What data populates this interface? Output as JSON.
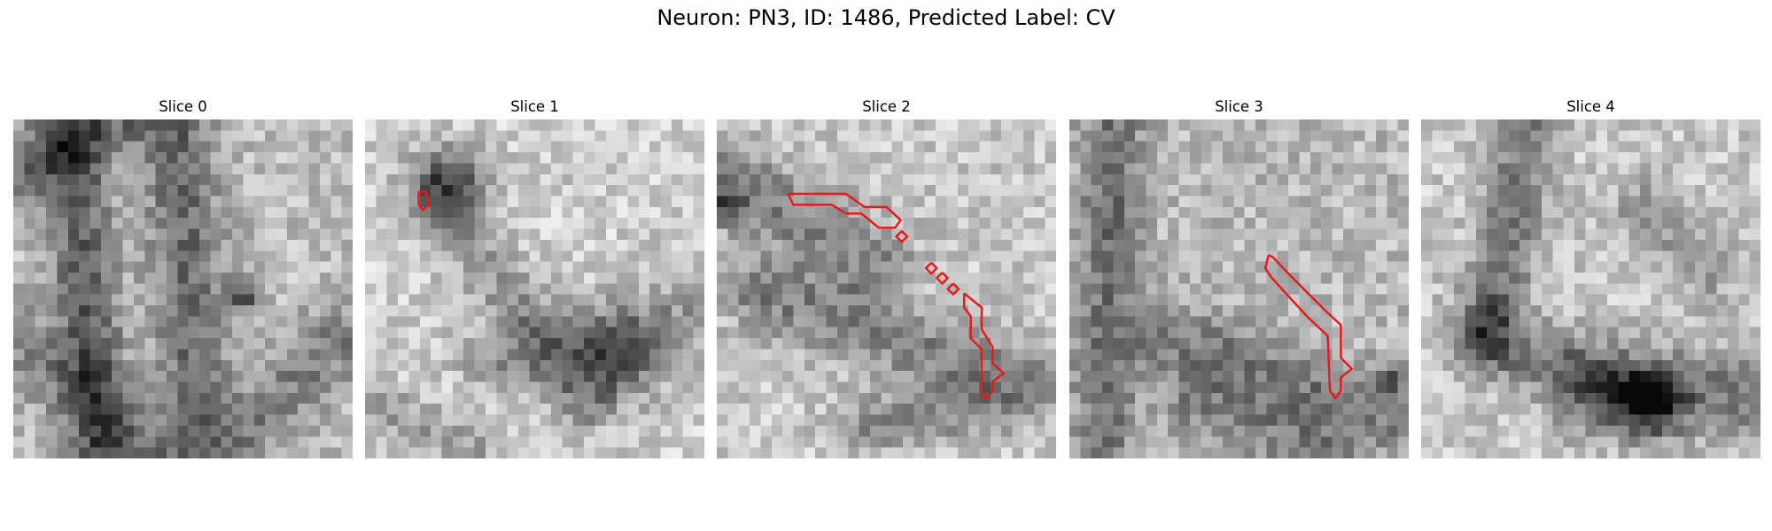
{
  "figure": {
    "title": "Neuron: PN3, ID: 1486, Predicted Label: CV"
  },
  "slices": [
    {
      "title": "Slice 0",
      "has_contour": false
    },
    {
      "title": "Slice 1",
      "has_contour": true
    },
    {
      "title": "Slice 2",
      "has_contour": true
    },
    {
      "title": "Slice 3",
      "has_contour": true
    },
    {
      "title": "Slice 4",
      "has_contour": false
    }
  ],
  "colors": {
    "contour": "#e41a1c",
    "colormap": "grayscale"
  }
}
